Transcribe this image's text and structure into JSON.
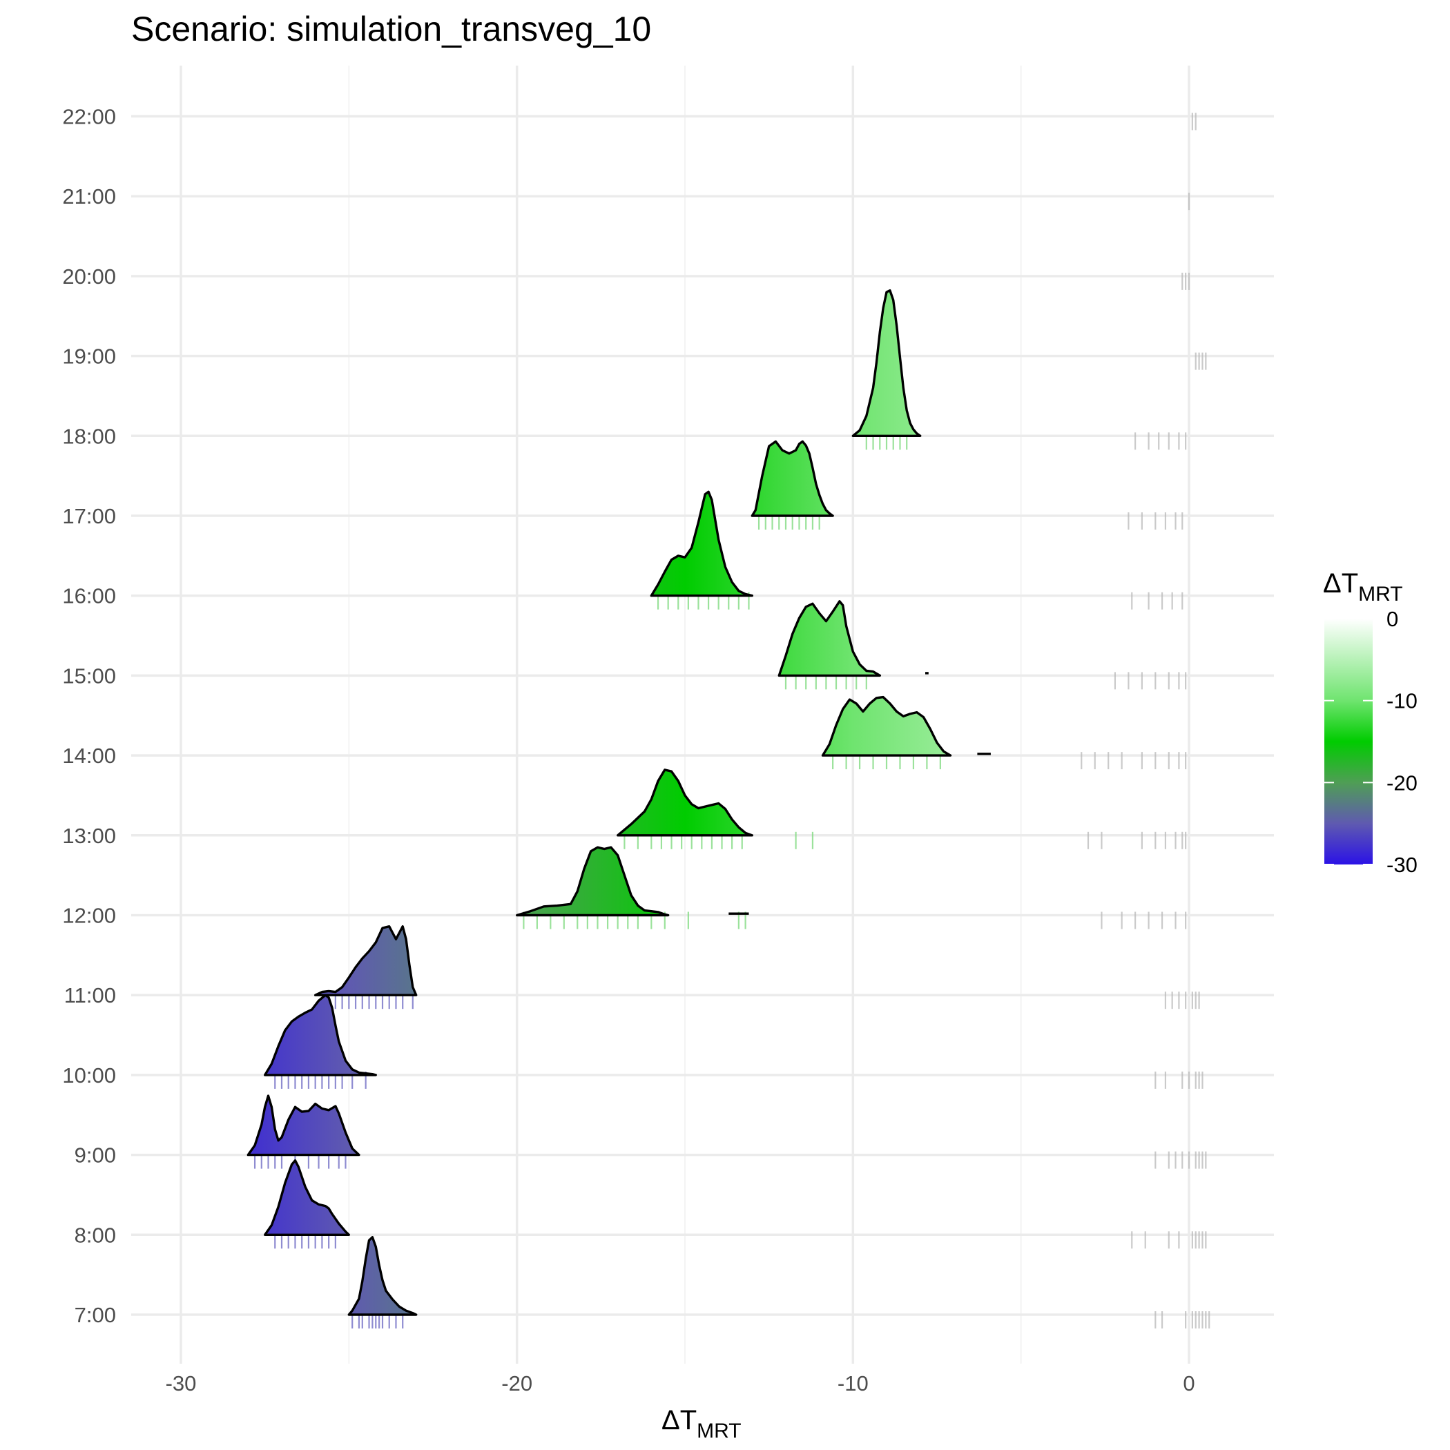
{
  "chart_data": {
    "type": "ridgeline",
    "title": "Scenario: simulation_transveg_10",
    "xlabel": {
      "main": "ΔT",
      "sub": "MRT"
    },
    "ylabel": "",
    "xlim": [
      -31.5,
      2.5
    ],
    "x_ticks": [
      -30,
      -20,
      -10,
      0
    ],
    "x_tick_labels": [
      "-30",
      "-20",
      "-10",
      "0"
    ],
    "grid": true,
    "legend": {
      "position": "right",
      "title": {
        "main": "ΔT",
        "sub": "MRT"
      },
      "range": [
        -30,
        0
      ],
      "ticks": [
        0,
        -10,
        -20,
        -30
      ],
      "tick_labels": [
        "0",
        "-10",
        "-20",
        "-30"
      ],
      "colors": [
        {
          "value": -30,
          "color": "#2b12e6"
        },
        {
          "value": -25,
          "color": "#5f5ab0"
        },
        {
          "value": -20,
          "color": "#4f9e55"
        },
        {
          "value": -15,
          "color": "#00cc00"
        },
        {
          "value": -10,
          "color": "#6fe46f"
        },
        {
          "value": 0,
          "color": "#ffffff"
        }
      ]
    },
    "categories": [
      "7:00",
      "8:00",
      "9:00",
      "10:00",
      "11:00",
      "12:00",
      "13:00",
      "14:00",
      "15:00",
      "16:00",
      "17:00",
      "18:00",
      "19:00",
      "20:00",
      "21:00",
      "22:00"
    ],
    "series": [
      {
        "category": "7:00",
        "fill_value": -24.3,
        "range": [
          -25.0,
          -23.0
        ],
        "x": [
          -25.0,
          -24.9,
          -24.7,
          -24.6,
          -24.5,
          -24.4,
          -24.3,
          -24.2,
          -24.1,
          -24.0,
          -23.9,
          -23.7,
          -23.5,
          -23.3,
          -23.1,
          -23.0
        ],
        "density": [
          0,
          0.05,
          0.2,
          0.42,
          0.7,
          0.93,
          0.97,
          0.85,
          0.62,
          0.43,
          0.3,
          0.19,
          0.1,
          0.05,
          0.02,
          0
        ],
        "rug": [
          -24.9,
          -24.7,
          -24.6,
          -24.4,
          -24.3,
          -24.2,
          -24.1,
          -24.0,
          -23.8,
          -23.6,
          -23.4,
          -1.0,
          -0.8,
          -0.1,
          0.1,
          0.2,
          0.3,
          0.4,
          0.5,
          0.6
        ]
      },
      {
        "category": "8:00",
        "fill_value": -26.6,
        "range": [
          -27.5,
          -25.0
        ],
        "x": [
          -27.5,
          -27.3,
          -27.1,
          -26.9,
          -26.7,
          -26.6,
          -26.5,
          -26.3,
          -26.1,
          -25.9,
          -25.7,
          -25.6,
          -25.5,
          -25.3,
          -25.1,
          -25.0
        ],
        "density": [
          0,
          0.12,
          0.35,
          0.65,
          0.88,
          0.93,
          0.85,
          0.6,
          0.43,
          0.38,
          0.36,
          0.33,
          0.26,
          0.14,
          0.04,
          0
        ],
        "rug": [
          -27.2,
          -27.0,
          -26.8,
          -26.6,
          -26.4,
          -26.2,
          -26.0,
          -25.8,
          -25.6,
          -25.4,
          -1.7,
          -1.3,
          -0.6,
          -0.3,
          0.1,
          0.2,
          0.3,
          0.4,
          0.5
        ]
      },
      {
        "category": "9:00",
        "fill_value": -27.0,
        "range": [
          -28.0,
          -24.7
        ],
        "x": [
          -28.0,
          -27.8,
          -27.6,
          -27.5,
          -27.4,
          -27.3,
          -27.2,
          -27.1,
          -27.0,
          -26.8,
          -26.6,
          -26.4,
          -26.2,
          -26.0,
          -25.8,
          -25.6,
          -25.4,
          -25.3,
          -25.1,
          -24.9,
          -24.7
        ],
        "density": [
          0,
          0.12,
          0.38,
          0.6,
          0.74,
          0.6,
          0.32,
          0.18,
          0.22,
          0.44,
          0.6,
          0.54,
          0.55,
          0.64,
          0.58,
          0.56,
          0.61,
          0.52,
          0.28,
          0.08,
          0
        ],
        "rug": [
          -27.8,
          -27.6,
          -27.4,
          -27.2,
          -27.0,
          -26.6,
          -26.2,
          -25.9,
          -25.6,
          -25.3,
          -25.1,
          -1.0,
          -0.6,
          -0.4,
          -0.2,
          0.0,
          0.2,
          0.3,
          0.4,
          0.5
        ]
      },
      {
        "category": "10:00",
        "fill_value": -26.3,
        "range": [
          -27.5,
          -24.2
        ],
        "x": [
          -27.5,
          -27.3,
          -27.1,
          -26.9,
          -26.7,
          -26.5,
          -26.3,
          -26.1,
          -25.9,
          -25.7,
          -25.6,
          -25.5,
          -25.4,
          -25.3,
          -25.1,
          -24.9,
          -24.7,
          -24.5,
          -24.3,
          -24.2
        ],
        "density": [
          0,
          0.14,
          0.36,
          0.56,
          0.67,
          0.73,
          0.78,
          0.82,
          0.93,
          1.0,
          0.97,
          0.84,
          0.62,
          0.42,
          0.18,
          0.07,
          0.03,
          0.02,
          0.01,
          0
        ],
        "rug": [
          -27.2,
          -27.0,
          -26.8,
          -26.6,
          -26.4,
          -26.2,
          -26.0,
          -25.8,
          -25.6,
          -25.4,
          -25.2,
          -24.9,
          -24.5,
          -1.0,
          -0.7,
          -0.2,
          0.0,
          0.2,
          0.3,
          0.4
        ]
      },
      {
        "category": "11:00",
        "fill_value": -24.5,
        "range": [
          -26.0,
          -23.0
        ],
        "x": [
          -26.0,
          -25.8,
          -25.6,
          -25.4,
          -25.2,
          -25.0,
          -24.8,
          -24.6,
          -24.4,
          -24.2,
          -24.0,
          -23.8,
          -23.7,
          -23.6,
          -23.5,
          -23.4,
          -23.3,
          -23.2,
          -23.1,
          -23.0
        ],
        "density": [
          0,
          0.04,
          0.05,
          0.04,
          0.1,
          0.22,
          0.35,
          0.46,
          0.55,
          0.66,
          0.84,
          0.86,
          0.78,
          0.7,
          0.78,
          0.86,
          0.7,
          0.38,
          0.1,
          0
        ],
        "rug": [
          -25.7,
          -25.4,
          -25.2,
          -25.0,
          -24.8,
          -24.6,
          -24.4,
          -24.2,
          -24.0,
          -23.8,
          -23.6,
          -23.4,
          -23.1,
          -0.7,
          -0.5,
          -0.3,
          -0.1,
          0.1,
          0.2,
          0.3
        ]
      },
      {
        "category": "12:00",
        "fill_value": -17.5,
        "range": [
          -20.0,
          -15.5
        ],
        "x": [
          -20.0,
          -19.6,
          -19.2,
          -18.8,
          -18.4,
          -18.2,
          -18.0,
          -17.8,
          -17.6,
          -17.4,
          -17.2,
          -17.0,
          -16.8,
          -16.6,
          -16.4,
          -16.2,
          -16.0,
          -15.8,
          -15.6,
          -15.5
        ],
        "density": [
          0,
          0.05,
          0.11,
          0.12,
          0.14,
          0.3,
          0.58,
          0.8,
          0.85,
          0.83,
          0.85,
          0.75,
          0.5,
          0.25,
          0.12,
          0.06,
          0.05,
          0.04,
          0.01,
          0
        ],
        "extra_segment": {
          "x": [
            -13.7,
            -13.1
          ],
          "density": [
            0.02,
            0.02
          ]
        },
        "rug": [
          -19.8,
          -19.4,
          -19.0,
          -18.6,
          -18.2,
          -17.9,
          -17.6,
          -17.3,
          -17.0,
          -16.7,
          -16.4,
          -16.0,
          -15.6,
          -14.9,
          -13.4,
          -13.2,
          -2.6,
          -2.0,
          -1.6,
          -1.2,
          -0.8,
          -0.4,
          -0.1
        ]
      },
      {
        "category": "13:00",
        "fill_value": -15.0,
        "range": [
          -17.0,
          -13.0
        ],
        "x": [
          -17.0,
          -16.6,
          -16.2,
          -16.0,
          -15.8,
          -15.6,
          -15.4,
          -15.2,
          -15.0,
          -14.8,
          -14.6,
          -14.4,
          -14.2,
          -14.0,
          -13.8,
          -13.6,
          -13.4,
          -13.2,
          -13.0
        ],
        "density": [
          0,
          0.14,
          0.3,
          0.45,
          0.68,
          0.82,
          0.8,
          0.68,
          0.5,
          0.39,
          0.34,
          0.36,
          0.38,
          0.4,
          0.33,
          0.2,
          0.1,
          0.03,
          0
        ],
        "rug": [
          -16.8,
          -16.4,
          -16.0,
          -15.7,
          -15.4,
          -15.1,
          -14.8,
          -14.5,
          -14.2,
          -13.9,
          -13.6,
          -13.3,
          -11.7,
          -11.2,
          -3.0,
          -2.6,
          -1.4,
          -1.0,
          -0.7,
          -0.4,
          -0.2,
          -0.1
        ]
      },
      {
        "category": "14:00",
        "fill_value": -9.8,
        "range": [
          -10.9,
          -7.1
        ],
        "x": [
          -10.9,
          -10.7,
          -10.5,
          -10.3,
          -10.1,
          -9.9,
          -9.7,
          -9.5,
          -9.3,
          -9.1,
          -8.9,
          -8.7,
          -8.5,
          -8.3,
          -8.1,
          -7.9,
          -7.7,
          -7.5,
          -7.3,
          -7.1
        ],
        "density": [
          0,
          0.14,
          0.38,
          0.58,
          0.7,
          0.65,
          0.55,
          0.65,
          0.72,
          0.73,
          0.65,
          0.55,
          0.49,
          0.52,
          0.54,
          0.48,
          0.33,
          0.16,
          0.05,
          0
        ],
        "extra_segment": {
          "x": [
            -6.3,
            -5.9
          ],
          "density": [
            0.02,
            0.02
          ]
        },
        "rug": [
          -10.6,
          -10.2,
          -9.8,
          -9.4,
          -9.0,
          -8.6,
          -8.2,
          -7.8,
          -7.4,
          -3.2,
          -2.8,
          -2.4,
          -2.0,
          -1.4,
          -1.0,
          -0.6,
          -0.3,
          -0.1
        ]
      },
      {
        "category": "15:00",
        "fill_value": -11.0,
        "range": [
          -12.2,
          -9.2
        ],
        "x": [
          -12.2,
          -12.0,
          -11.8,
          -11.6,
          -11.4,
          -11.2,
          -11.0,
          -10.8,
          -10.6,
          -10.4,
          -10.3,
          -10.2,
          -10.0,
          -9.8,
          -9.6,
          -9.4,
          -9.2
        ],
        "density": [
          0,
          0.25,
          0.52,
          0.72,
          0.86,
          0.9,
          0.78,
          0.68,
          0.8,
          0.93,
          0.88,
          0.62,
          0.3,
          0.14,
          0.06,
          0.05,
          0
        ],
        "extra_segment": {
          "x": [
            -7.85,
            -7.75
          ],
          "density": [
            0.03,
            0.03
          ]
        },
        "rug": [
          -12.0,
          -11.7,
          -11.4,
          -11.1,
          -10.8,
          -10.5,
          -10.2,
          -9.9,
          -9.6,
          -2.2,
          -1.8,
          -1.4,
          -1.0,
          -0.6,
          -0.3,
          -0.1
        ]
      },
      {
        "category": "16:00",
        "fill_value": -14.3,
        "range": [
          -16.0,
          -13.0
        ],
        "x": [
          -16.0,
          -15.8,
          -15.6,
          -15.4,
          -15.2,
          -15.0,
          -14.8,
          -14.6,
          -14.4,
          -14.3,
          -14.2,
          -14.0,
          -13.8,
          -13.6,
          -13.4,
          -13.2,
          -13.0
        ],
        "density": [
          0,
          0.14,
          0.3,
          0.45,
          0.5,
          0.48,
          0.6,
          0.92,
          1.27,
          1.3,
          1.2,
          0.7,
          0.36,
          0.17,
          0.06,
          0.02,
          0
        ],
        "rug": [
          -15.8,
          -15.5,
          -15.2,
          -14.9,
          -14.6,
          -14.3,
          -14.0,
          -13.7,
          -13.4,
          -13.1,
          -1.7,
          -1.2,
          -0.8,
          -0.5,
          -0.2
        ]
      },
      {
        "category": "17:00",
        "fill_value": -11.8,
        "range": [
          -13.0,
          -10.6
        ],
        "x": [
          -13.0,
          -12.9,
          -12.7,
          -12.5,
          -12.3,
          -12.1,
          -11.9,
          -11.7,
          -11.6,
          -11.5,
          -11.4,
          -11.3,
          -11.2,
          -11.1,
          -11.0,
          -10.9,
          -10.8,
          -10.7,
          -10.6
        ],
        "density": [
          0,
          0.07,
          0.5,
          0.87,
          0.93,
          0.82,
          0.78,
          0.82,
          0.9,
          0.93,
          0.88,
          0.78,
          0.6,
          0.4,
          0.26,
          0.15,
          0.07,
          0.03,
          0
        ],
        "rug": [
          -12.8,
          -12.6,
          -12.4,
          -12.2,
          -12.0,
          -11.8,
          -11.6,
          -11.4,
          -11.2,
          -11.0,
          -1.8,
          -1.4,
          -1.0,
          -0.7,
          -0.4,
          -0.2
        ]
      },
      {
        "category": "18:00",
        "fill_value": -8.8,
        "range": [
          -10.0,
          -8.0
        ],
        "x": [
          -10.0,
          -9.8,
          -9.6,
          -9.4,
          -9.3,
          -9.2,
          -9.1,
          -9.0,
          -8.9,
          -8.8,
          -8.7,
          -8.6,
          -8.5,
          -8.4,
          -8.3,
          -8.2,
          -8.1,
          -8.0
        ],
        "density": [
          0,
          0.07,
          0.25,
          0.6,
          0.92,
          1.3,
          1.6,
          1.8,
          1.82,
          1.7,
          1.38,
          0.98,
          0.6,
          0.32,
          0.16,
          0.08,
          0.03,
          0
        ],
        "rug": [
          -9.6,
          -9.4,
          -9.2,
          -9.0,
          -8.8,
          -8.6,
          -8.4,
          -1.6,
          -1.2,
          -0.9,
          -0.6,
          -0.3,
          -0.1
        ]
      },
      {
        "category": "19:00",
        "rug": [
          0.2,
          0.3,
          0.4,
          0.5
        ]
      },
      {
        "category": "20:00",
        "rug": [
          -0.2,
          -0.1,
          0.0
        ]
      },
      {
        "category": "21:00",
        "rug": [
          0.0
        ]
      },
      {
        "category": "22:00",
        "rug": [
          0.1,
          0.2
        ]
      }
    ]
  }
}
